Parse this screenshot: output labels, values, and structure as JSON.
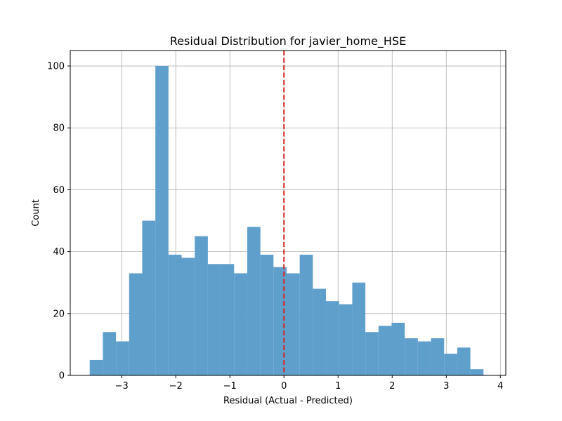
{
  "chart_data": {
    "type": "bar",
    "subtype": "histogram",
    "title": "Residual Distribution for javier_home_HSE",
    "xlabel": "Residual (Actual - Predicted)",
    "ylabel": "Count",
    "xlim": [
      -3.95,
      4.1
    ],
    "ylim": [
      0,
      105
    ],
    "xticks": [
      -3,
      -2,
      -1,
      0,
      1,
      2,
      3,
      4
    ],
    "xtick_labels": [
      "−3",
      "−2",
      "−1",
      "0",
      "1",
      "2",
      "3",
      "4"
    ],
    "yticks": [
      0,
      20,
      40,
      60,
      80,
      100
    ],
    "ytick_labels": [
      "0",
      "20",
      "40",
      "60",
      "80",
      "100"
    ],
    "grid": true,
    "bins": {
      "start": -3.59,
      "width": 0.2426,
      "counts": [
        5,
        14,
        11,
        33,
        50,
        100,
        39,
        38,
        45,
        36,
        36,
        33,
        48,
        39,
        35,
        33,
        39,
        28,
        24,
        23,
        30,
        14,
        16,
        17,
        12,
        11,
        12,
        7,
        9,
        2
      ]
    },
    "bar_color": "#5f9fcc",
    "reference_line": {
      "x": 0,
      "color": "#d62728",
      "style": "dashed"
    }
  }
}
